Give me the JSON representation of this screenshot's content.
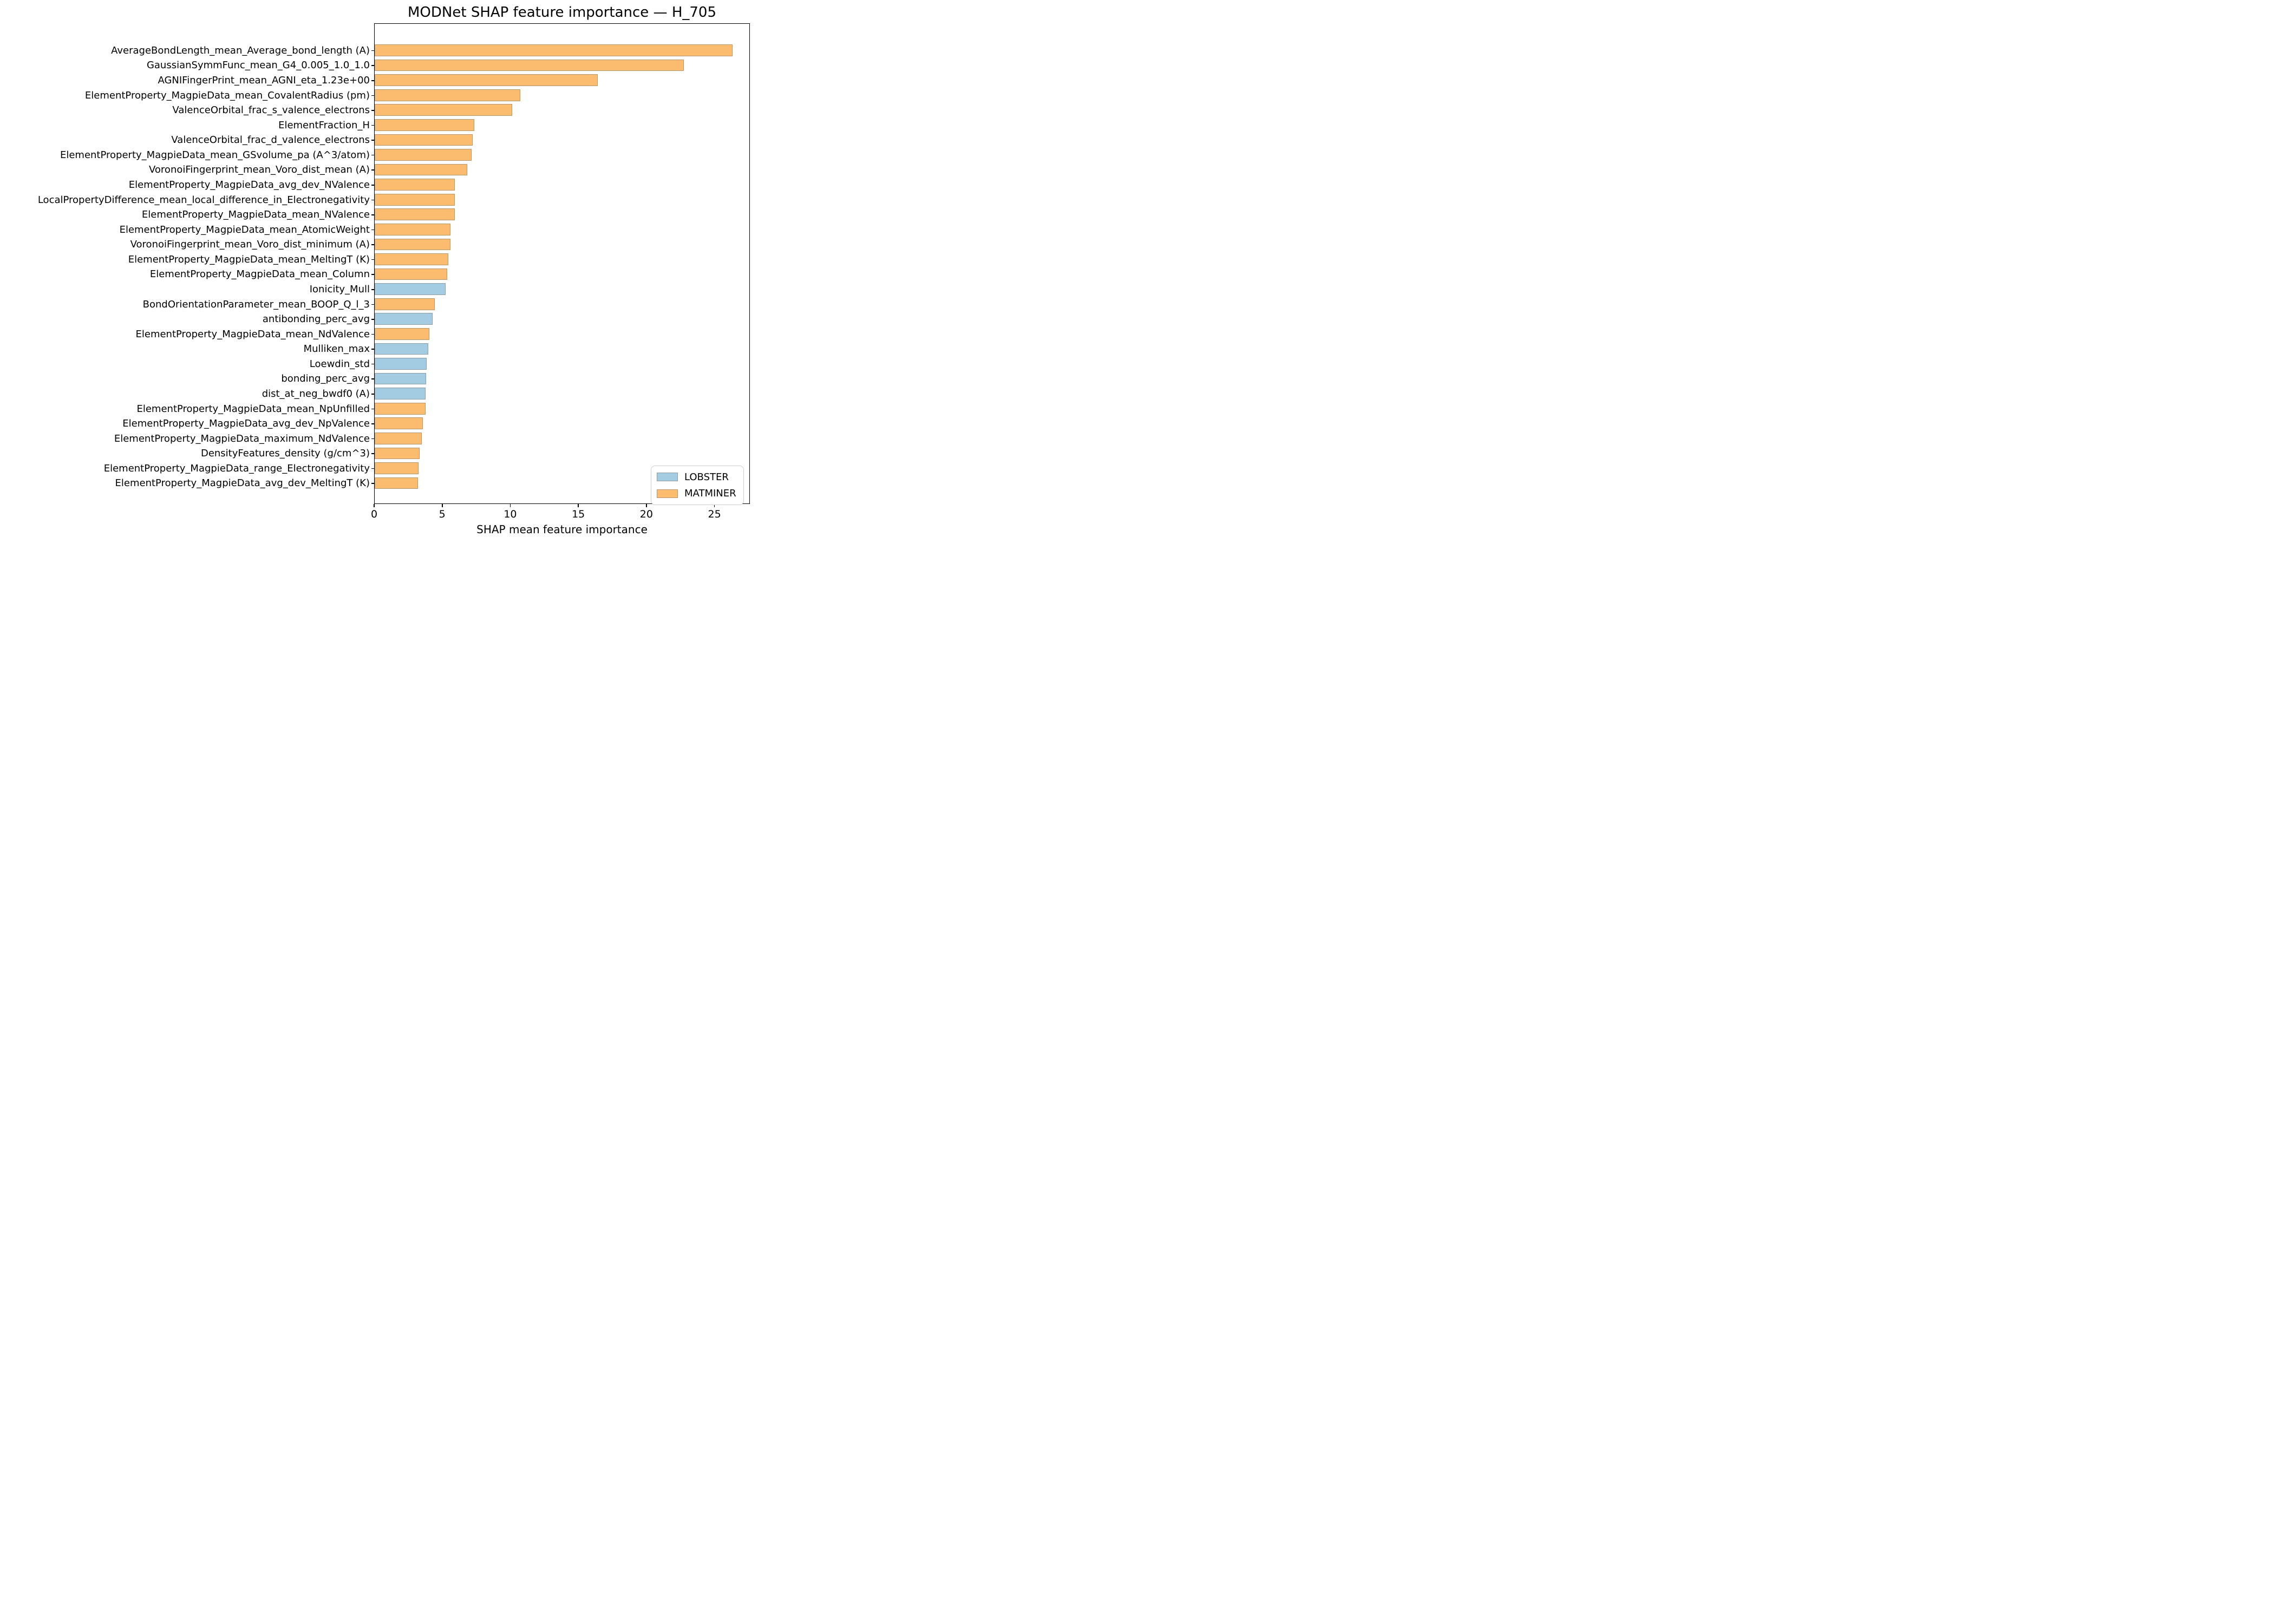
{
  "chart_data": {
    "type": "bar",
    "orientation": "horizontal",
    "title": "MODNet SHAP feature importance — H_705",
    "xlabel": "SHAP mean feature importance",
    "ylabel": "",
    "xlim": [
      0,
      27.6
    ],
    "xticks": [
      0,
      5,
      10,
      15,
      20,
      25
    ],
    "grid": false,
    "legend": {
      "position": "lower-right",
      "entries": [
        {
          "label": "LOBSTER",
          "color": "#A3CCE3"
        },
        {
          "label": "MATMINER",
          "color": "#FBBC6F"
        }
      ]
    },
    "colors": {
      "LOBSTER": "#A3CCE3",
      "MATMINER": "#FBBC6F",
      "bar_edge": "#7d766e",
      "spine": "#000000",
      "legend_border": "#cccccc"
    },
    "bars": [
      {
        "label": "AverageBondLength_mean_Average_bond_length (A)",
        "value": 26.3,
        "group": "MATMINER"
      },
      {
        "label": "GaussianSymmFunc_mean_G4_0.005_1.0_1.0",
        "value": 22.7,
        "group": "MATMINER"
      },
      {
        "label": "AGNIFingerPrint_mean_AGNI_eta_1.23e+00",
        "value": 16.4,
        "group": "MATMINER"
      },
      {
        "label": "ElementProperty_MagpieData_mean_CovalentRadius (pm)",
        "value": 10.7,
        "group": "MATMINER"
      },
      {
        "label": "ValenceOrbital_frac_s_valence_electrons",
        "value": 10.1,
        "group": "MATMINER"
      },
      {
        "label": "ElementFraction_H",
        "value": 7.3,
        "group": "MATMINER"
      },
      {
        "label": "ValenceOrbital_frac_d_valence_electrons",
        "value": 7.2,
        "group": "MATMINER"
      },
      {
        "label": "ElementProperty_MagpieData_mean_GSvolume_pa (A^3/atom)",
        "value": 7.1,
        "group": "MATMINER"
      },
      {
        "label": "VoronoiFingerprint_mean_Voro_dist_mean (A)",
        "value": 6.8,
        "group": "MATMINER"
      },
      {
        "label": "ElementProperty_MagpieData_avg_dev_NValence",
        "value": 5.9,
        "group": "MATMINER"
      },
      {
        "label": "LocalPropertyDifference_mean_local_difference_in_Electronegativity",
        "value": 5.89,
        "group": "MATMINER"
      },
      {
        "label": "ElementProperty_MagpieData_mean_NValence",
        "value": 5.88,
        "group": "MATMINER"
      },
      {
        "label": "ElementProperty_MagpieData_mean_AtomicWeight",
        "value": 5.58,
        "group": "MATMINER"
      },
      {
        "label": "VoronoiFingerprint_mean_Voro_dist_minimum (A)",
        "value": 5.57,
        "group": "MATMINER"
      },
      {
        "label": "ElementProperty_MagpieData_mean_MeltingT (K)",
        "value": 5.39,
        "group": "MATMINER"
      },
      {
        "label": "ElementProperty_MagpieData_mean_Column",
        "value": 5.34,
        "group": "MATMINER"
      },
      {
        "label": "Ionicity_Mull",
        "value": 5.19,
        "group": "LOBSTER"
      },
      {
        "label": "BondOrientationParameter_mean_BOOP_Q_l_3",
        "value": 4.4,
        "group": "MATMINER"
      },
      {
        "label": "antibonding_perc_avg",
        "value": 4.27,
        "group": "LOBSTER"
      },
      {
        "label": "ElementProperty_MagpieData_mean_NdValence",
        "value": 4.0,
        "group": "MATMINER"
      },
      {
        "label": "Mulliken_max",
        "value": 3.92,
        "group": "LOBSTER"
      },
      {
        "label": "Loewdin_std",
        "value": 3.82,
        "group": "LOBSTER"
      },
      {
        "label": "bonding_perc_avg",
        "value": 3.76,
        "group": "LOBSTER"
      },
      {
        "label": "dist_at_neg_bwdf0 (A)",
        "value": 3.75,
        "group": "LOBSTER"
      },
      {
        "label": "ElementProperty_MagpieData_mean_NpUnfilled",
        "value": 3.74,
        "group": "MATMINER"
      },
      {
        "label": "ElementProperty_MagpieData_avg_dev_NpValence",
        "value": 3.54,
        "group": "MATMINER"
      },
      {
        "label": "ElementProperty_MagpieData_maximum_NdValence",
        "value": 3.47,
        "group": "MATMINER"
      },
      {
        "label": "DensityFeatures_density (g/cm^3)",
        "value": 3.29,
        "group": "MATMINER"
      },
      {
        "label": "ElementProperty_MagpieData_range_Electronegativity",
        "value": 3.22,
        "group": "MATMINER"
      },
      {
        "label": "ElementProperty_MagpieData_avg_dev_MeltingT (K)",
        "value": 3.17,
        "group": "MATMINER"
      }
    ]
  }
}
